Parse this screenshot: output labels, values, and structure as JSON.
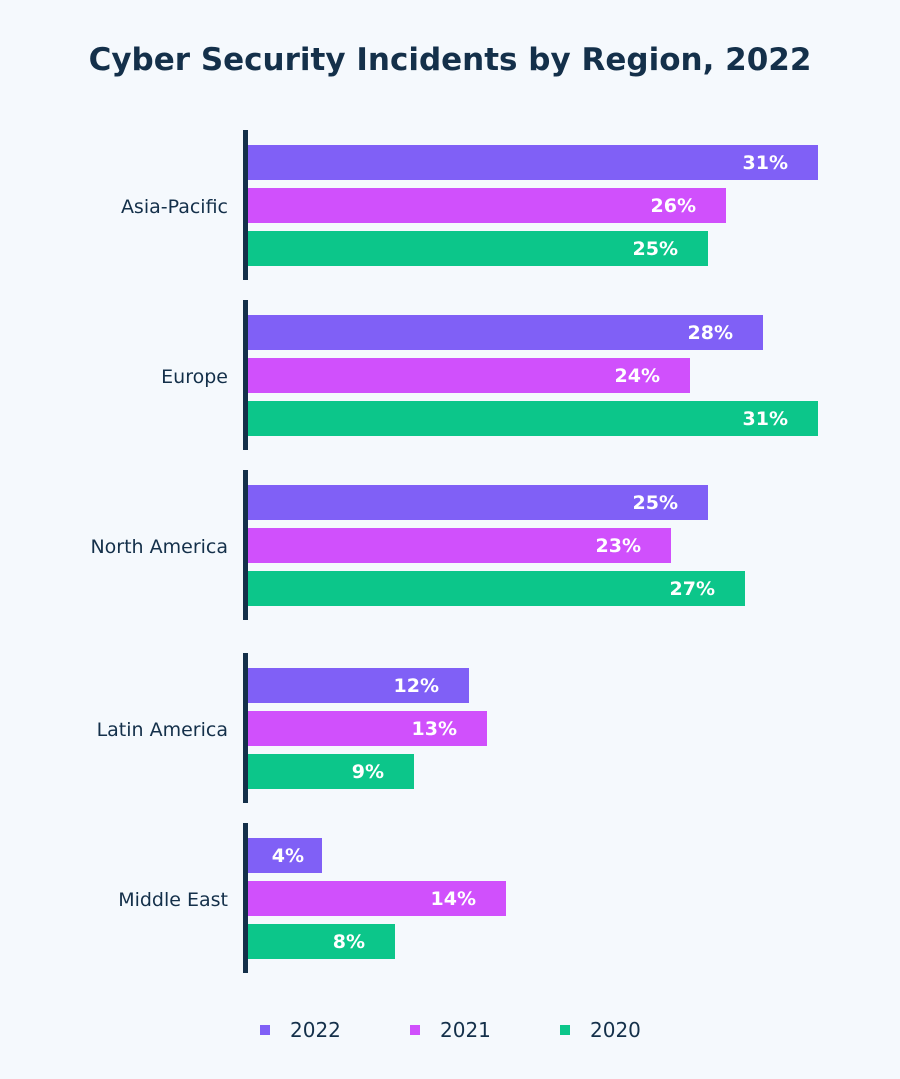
{
  "chart_data": {
    "type": "bar",
    "orientation": "horizontal",
    "title": "Cyber Security Incidents by Region, 2022",
    "categories": [
      "Asia-Pacific",
      "Europe",
      "North America",
      "Latin America",
      "Middle East"
    ],
    "series": [
      {
        "name": "2022",
        "color": "#8060f6",
        "values": [
          31,
          28,
          25,
          12,
          4
        ],
        "labels": [
          "31%",
          "28%",
          "25%",
          "12%",
          "4%"
        ]
      },
      {
        "name": "2021",
        "color": "#d050fc",
        "values": [
          26,
          24,
          23,
          13,
          14
        ],
        "labels": [
          "26%",
          "24%",
          "23%",
          "13%",
          "14%"
        ]
      },
      {
        "name": "2020",
        "color": "#0cc68a",
        "values": [
          25,
          31,
          27,
          9,
          8
        ],
        "labels": [
          "25%",
          "31%",
          "27%",
          "9%",
          "8%"
        ]
      }
    ],
    "xlabel": "",
    "ylabel": "",
    "unit": "%",
    "grid": false,
    "legend": "bottom-center"
  }
}
